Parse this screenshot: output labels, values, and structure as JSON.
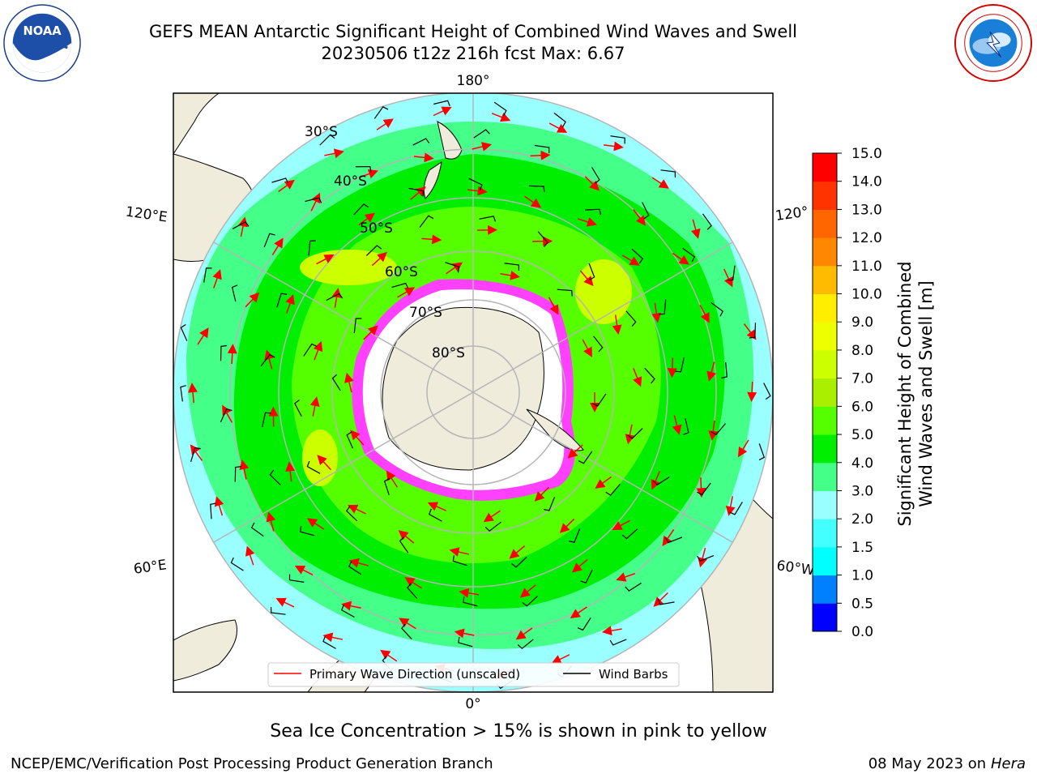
{
  "title": {
    "line1": "GEFS MEAN Antarctic Significant Height of Combined Wind Waves and Swell",
    "line2": "20230506 t12z 216h fcst   Max: 6.67"
  },
  "logos": {
    "noaa": {
      "text": "NOAA",
      "ring_text": "NATIONAL OCEANIC AND ATMOSPHERIC ADMINISTRATION · U.S. DEPARTMENT OF COMMERCE"
    },
    "nws": {
      "ring_text": "NATIONAL WEATHER SERVICE"
    }
  },
  "map": {
    "projection": "south-polar-stereographic",
    "longitude_labels": {
      "top": "180°",
      "bottom": "0°",
      "left_upper": "120°E",
      "left_lower": "60°E",
      "right_upper": "120°",
      "right_lower": "60°W"
    },
    "latitude_labels": [
      "30°S",
      "40°S",
      "50°S",
      "60°S",
      "70°S",
      "80°S"
    ],
    "legend": {
      "primary_wave": "Primary Wave Direction (unscaled)",
      "wind_barbs": "Wind Barbs"
    },
    "colors": {
      "land": "#efecdc",
      "ocean_frame": "#ffffff",
      "ice_pink": "#ff40ff",
      "ice_yellow": "#ffcc44",
      "wave_arrow": "#ff0000",
      "wind_barb": "#000000",
      "grid": "#b5b5b5"
    }
  },
  "colorbar": {
    "label_line1": "Significant Height of Combined",
    "label_line2": "Wind Waves and Swell [m]",
    "ticks": [
      "15.0",
      "14.0",
      "13.0",
      "12.0",
      "11.0",
      "10.0",
      "9.0",
      "8.0",
      "7.0",
      "6.0",
      "5.0",
      "4.0",
      "3.0",
      "2.0",
      "1.5",
      "1.0",
      "0.5",
      "0.0"
    ],
    "levels": [
      0.0,
      0.5,
      1.0,
      1.5,
      2.0,
      3.0,
      4.0,
      5.0,
      6.0,
      7.0,
      8.0,
      9.0,
      10.0,
      11.0,
      12.0,
      13.0,
      14.0,
      15.0
    ],
    "colors": [
      "#0000ff",
      "#0080ff",
      "#00ffff",
      "#44ffff",
      "#99ffff",
      "#44ff88",
      "#00ee00",
      "#55ff00",
      "#aaee00",
      "#ccff00",
      "#eeff00",
      "#ffee00",
      "#ffbb00",
      "#ff8800",
      "#ff6600",
      "#ff3300",
      "#ff0000"
    ]
  },
  "ice_note": "Sea Ice Concentration > 15% is shown in pink to yellow",
  "footer": {
    "left": "NCEP/EMC/Verification Post Processing Product Generation Branch",
    "right_date": "08 May 2023 on",
    "right_host": "Hera"
  }
}
